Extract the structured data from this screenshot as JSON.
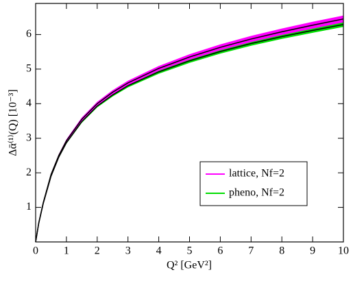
{
  "chart_data": {
    "type": "band-line",
    "xlabel": "Q² [GeV²]",
    "ylabel": "Δᾱ⁽¹⁾(Q) [10⁻³]",
    "x": [
      0,
      0.1,
      0.25,
      0.5,
      0.75,
      1,
      1.5,
      2,
      2.5,
      3,
      4,
      5,
      6,
      7,
      8,
      9,
      10
    ],
    "series": [
      {
        "name": "lattice, Nf=2",
        "color": "#ff00ff",
        "line_color": "#000000",
        "values": [
          0,
          0.55,
          1.15,
          1.95,
          2.5,
          2.93,
          3.55,
          4.0,
          4.33,
          4.6,
          5.02,
          5.35,
          5.63,
          5.87,
          6.08,
          6.27,
          6.45
        ],
        "upper": [
          0,
          0.56,
          1.17,
          1.98,
          2.535,
          2.97,
          3.6,
          4.055,
          4.39,
          4.665,
          5.09,
          5.43,
          5.715,
          5.96,
          6.175,
          6.37,
          6.55
        ],
        "lower": [
          0,
          0.54,
          1.13,
          1.92,
          2.465,
          2.89,
          3.5,
          3.945,
          4.27,
          4.535,
          4.95,
          5.27,
          5.545,
          5.78,
          5.985,
          6.17,
          6.35
        ]
      },
      {
        "name": "pheno, Nf=2",
        "color": "#00dd00",
        "line_color": "#000000",
        "values": [
          0,
          0.53,
          1.12,
          1.9,
          2.45,
          2.87,
          3.48,
          3.93,
          4.25,
          4.52,
          4.92,
          5.24,
          5.51,
          5.74,
          5.94,
          6.12,
          6.29
        ],
        "upper": [
          0,
          0.54,
          1.135,
          1.92,
          2.475,
          2.9,
          3.515,
          3.97,
          4.295,
          4.57,
          4.975,
          5.3,
          5.572,
          5.805,
          6.007,
          6.19,
          6.36
        ],
        "lower": [
          0,
          0.52,
          1.105,
          1.88,
          2.425,
          2.84,
          3.445,
          3.89,
          4.205,
          4.47,
          4.865,
          5.18,
          5.448,
          5.675,
          5.873,
          6.05,
          6.22
        ]
      }
    ],
    "xlim": [
      0,
      10
    ],
    "xticks": [
      0,
      1,
      2,
      3,
      4,
      5,
      6,
      7,
      8,
      9,
      10
    ],
    "ylim": [
      0,
      6.9
    ],
    "yticks": [
      1,
      2,
      3,
      4,
      5,
      6
    ],
    "grid": false,
    "legend": "lower-right"
  }
}
